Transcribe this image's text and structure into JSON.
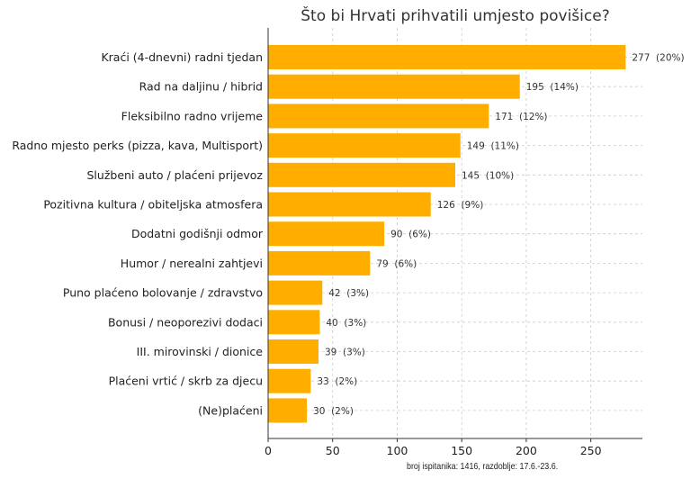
{
  "chart_data": {
    "type": "bar",
    "orientation": "horizontal",
    "title": "Što bi Hrvati prihvatili umjesto povišice?",
    "bar_color": "#FFAE00",
    "categories": [
      "Kraći (4-dnevni) radni tjedan",
      "Rad na daljinu / hibrid",
      "Fleksibilno radno vrijeme",
      "Radno mjesto perks (pizza, kava, Multisport)",
      "Službeni auto / plaćeni prijevoz",
      "Pozitivna kultura / obiteljska atmosfera",
      "Dodatni godišnji odmor",
      "Humor / nerealni zahtjevi",
      "Puno plaćeno bolovanje / zdravstvo",
      "Bonusi / neoporezivi dodaci",
      "III. mirovinski / dionice",
      "Plaćeni vrtić / skrb za djecu",
      "(Ne)plaćeni"
    ],
    "values": [
      277,
      195,
      171,
      149,
      145,
      126,
      90,
      79,
      42,
      40,
      39,
      33,
      30
    ],
    "value_labels": [
      "277  (20%)",
      "195  (14%)",
      "171  (12%)",
      "149  (11%)",
      "145  (10%)",
      "126  (9%)",
      "90  (6%)",
      "79  (6%)",
      "42  (3%)",
      "40  (3%)",
      "39  (3%)",
      "33  (2%)",
      "30  (2%)"
    ],
    "xlim": [
      0,
      290
    ],
    "xticks": [
      0,
      50,
      100,
      150,
      200,
      250
    ],
    "grid": true,
    "xlabel": "",
    "ylabel": ""
  },
  "footnote": "broj ispitanika: 1416, razdoblje: 17.6.-23.6."
}
